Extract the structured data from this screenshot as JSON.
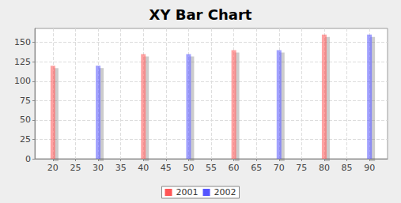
{
  "chart_data": {
    "type": "bar",
    "title": "XY Bar Chart",
    "series": [
      {
        "name": "2001",
        "color": "#ff5555",
        "x": [
          20,
          40,
          60,
          80
        ],
        "values": [
          120,
          135,
          140,
          160
        ]
      },
      {
        "name": "2002",
        "color": "#5555ff",
        "x": [
          30,
          50,
          70,
          90
        ],
        "values": [
          120,
          135,
          140,
          160
        ]
      }
    ],
    "xlim": [
      16,
      94
    ],
    "xticks": [
      20,
      25,
      30,
      35,
      40,
      45,
      50,
      55,
      60,
      65,
      70,
      75,
      80,
      85,
      90
    ],
    "ylim": [
      0,
      168
    ],
    "yticks": [
      0,
      25,
      50,
      75,
      100,
      125,
      150
    ],
    "grid": true,
    "legend": "bottom"
  }
}
